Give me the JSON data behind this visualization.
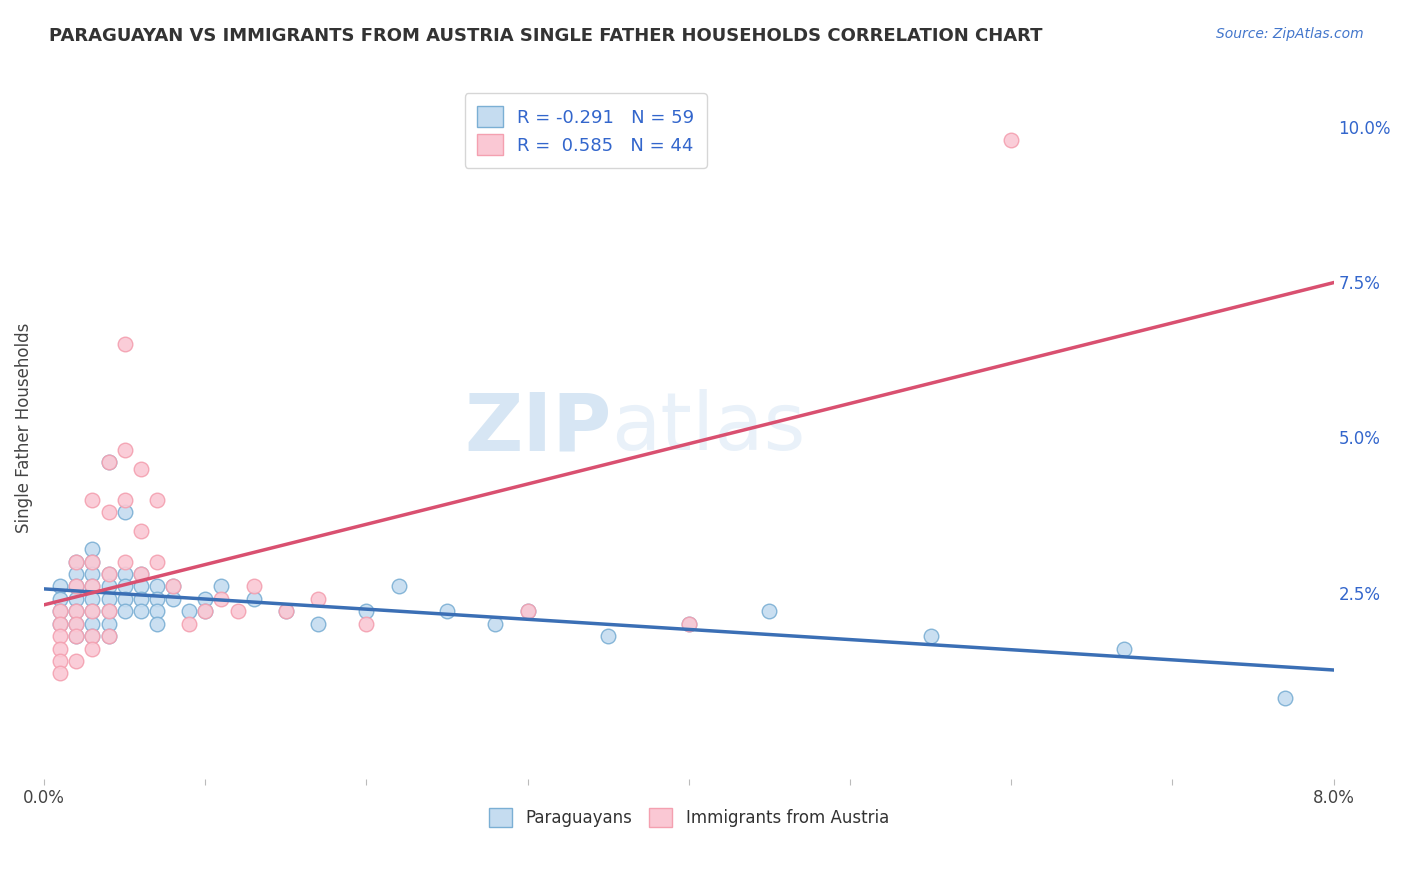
{
  "title": "PARAGUAYAN VS IMMIGRANTS FROM AUSTRIA SINGLE FATHER HOUSEHOLDS CORRELATION CHART",
  "source_text": "Source: ZipAtlas.com",
  "ylabel": "Single Father Households",
  "xlim": [
    0.0,
    0.08
  ],
  "ylim": [
    -0.005,
    0.108
  ],
  "yticks_right": [
    0.025,
    0.05,
    0.075,
    0.1
  ],
  "yticklabels_right": [
    "2.5%",
    "5.0%",
    "7.5%",
    "10.0%"
  ],
  "watermark_zip": "ZIP",
  "watermark_atlas": "atlas",
  "blue_color": "#7BAFD4",
  "pink_color": "#F4A0B0",
  "blue_face": "#C5DCF0",
  "pink_face": "#FAC8D4",
  "trend_blue": "#3B6FB5",
  "trend_pink": "#D95070",
  "dashed_line_color": "#CCCCCC",
  "background_color": "#FFFFFF",
  "grid_color": "#E8E8E8",
  "blue_scatter": [
    [
      0.001,
      0.026
    ],
    [
      0.001,
      0.024
    ],
    [
      0.001,
      0.022
    ],
    [
      0.001,
      0.02
    ],
    [
      0.002,
      0.03
    ],
    [
      0.002,
      0.028
    ],
    [
      0.002,
      0.026
    ],
    [
      0.002,
      0.024
    ],
    [
      0.002,
      0.022
    ],
    [
      0.002,
      0.02
    ],
    [
      0.002,
      0.018
    ],
    [
      0.003,
      0.032
    ],
    [
      0.003,
      0.03
    ],
    [
      0.003,
      0.028
    ],
    [
      0.003,
      0.026
    ],
    [
      0.003,
      0.024
    ],
    [
      0.003,
      0.022
    ],
    [
      0.003,
      0.02
    ],
    [
      0.003,
      0.018
    ],
    [
      0.004,
      0.046
    ],
    [
      0.004,
      0.028
    ],
    [
      0.004,
      0.026
    ],
    [
      0.004,
      0.024
    ],
    [
      0.004,
      0.022
    ],
    [
      0.004,
      0.02
    ],
    [
      0.004,
      0.018
    ],
    [
      0.005,
      0.038
    ],
    [
      0.005,
      0.028
    ],
    [
      0.005,
      0.026
    ],
    [
      0.005,
      0.024
    ],
    [
      0.005,
      0.022
    ],
    [
      0.006,
      0.028
    ],
    [
      0.006,
      0.026
    ],
    [
      0.006,
      0.024
    ],
    [
      0.006,
      0.022
    ],
    [
      0.007,
      0.026
    ],
    [
      0.007,
      0.024
    ],
    [
      0.007,
      0.022
    ],
    [
      0.007,
      0.02
    ],
    [
      0.008,
      0.026
    ],
    [
      0.008,
      0.024
    ],
    [
      0.009,
      0.022
    ],
    [
      0.01,
      0.024
    ],
    [
      0.01,
      0.022
    ],
    [
      0.011,
      0.026
    ],
    [
      0.013,
      0.024
    ],
    [
      0.015,
      0.022
    ],
    [
      0.017,
      0.02
    ],
    [
      0.02,
      0.022
    ],
    [
      0.022,
      0.026
    ],
    [
      0.025,
      0.022
    ],
    [
      0.028,
      0.02
    ],
    [
      0.03,
      0.022
    ],
    [
      0.035,
      0.018
    ],
    [
      0.04,
      0.02
    ],
    [
      0.045,
      0.022
    ],
    [
      0.055,
      0.018
    ],
    [
      0.067,
      0.016
    ],
    [
      0.077,
      0.008
    ]
  ],
  "pink_scatter": [
    [
      0.001,
      0.022
    ],
    [
      0.001,
      0.02
    ],
    [
      0.001,
      0.018
    ],
    [
      0.001,
      0.016
    ],
    [
      0.001,
      0.014
    ],
    [
      0.001,
      0.012
    ],
    [
      0.002,
      0.03
    ],
    [
      0.002,
      0.026
    ],
    [
      0.002,
      0.022
    ],
    [
      0.002,
      0.02
    ],
    [
      0.002,
      0.018
    ],
    [
      0.002,
      0.014
    ],
    [
      0.003,
      0.04
    ],
    [
      0.003,
      0.03
    ],
    [
      0.003,
      0.026
    ],
    [
      0.003,
      0.022
    ],
    [
      0.003,
      0.018
    ],
    [
      0.003,
      0.016
    ],
    [
      0.004,
      0.046
    ],
    [
      0.004,
      0.038
    ],
    [
      0.004,
      0.028
    ],
    [
      0.004,
      0.022
    ],
    [
      0.004,
      0.018
    ],
    [
      0.005,
      0.065
    ],
    [
      0.005,
      0.048
    ],
    [
      0.005,
      0.04
    ],
    [
      0.005,
      0.03
    ],
    [
      0.006,
      0.045
    ],
    [
      0.006,
      0.035
    ],
    [
      0.006,
      0.028
    ],
    [
      0.007,
      0.04
    ],
    [
      0.007,
      0.03
    ],
    [
      0.008,
      0.026
    ],
    [
      0.009,
      0.02
    ],
    [
      0.01,
      0.022
    ],
    [
      0.011,
      0.024
    ],
    [
      0.012,
      0.022
    ],
    [
      0.013,
      0.026
    ],
    [
      0.015,
      0.022
    ],
    [
      0.017,
      0.024
    ],
    [
      0.02,
      0.02
    ],
    [
      0.03,
      0.022
    ],
    [
      0.04,
      0.02
    ],
    [
      0.06,
      0.098
    ]
  ],
  "figsize": [
    14.06,
    8.92
  ],
  "dpi": 100
}
